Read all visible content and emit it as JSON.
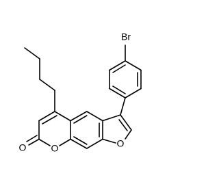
{
  "atoms": [
    {
      "label": "Br"
    },
    {
      "label": "O"
    },
    {
      "label": "O"
    },
    {
      "label": "O"
    }
  ]
}
